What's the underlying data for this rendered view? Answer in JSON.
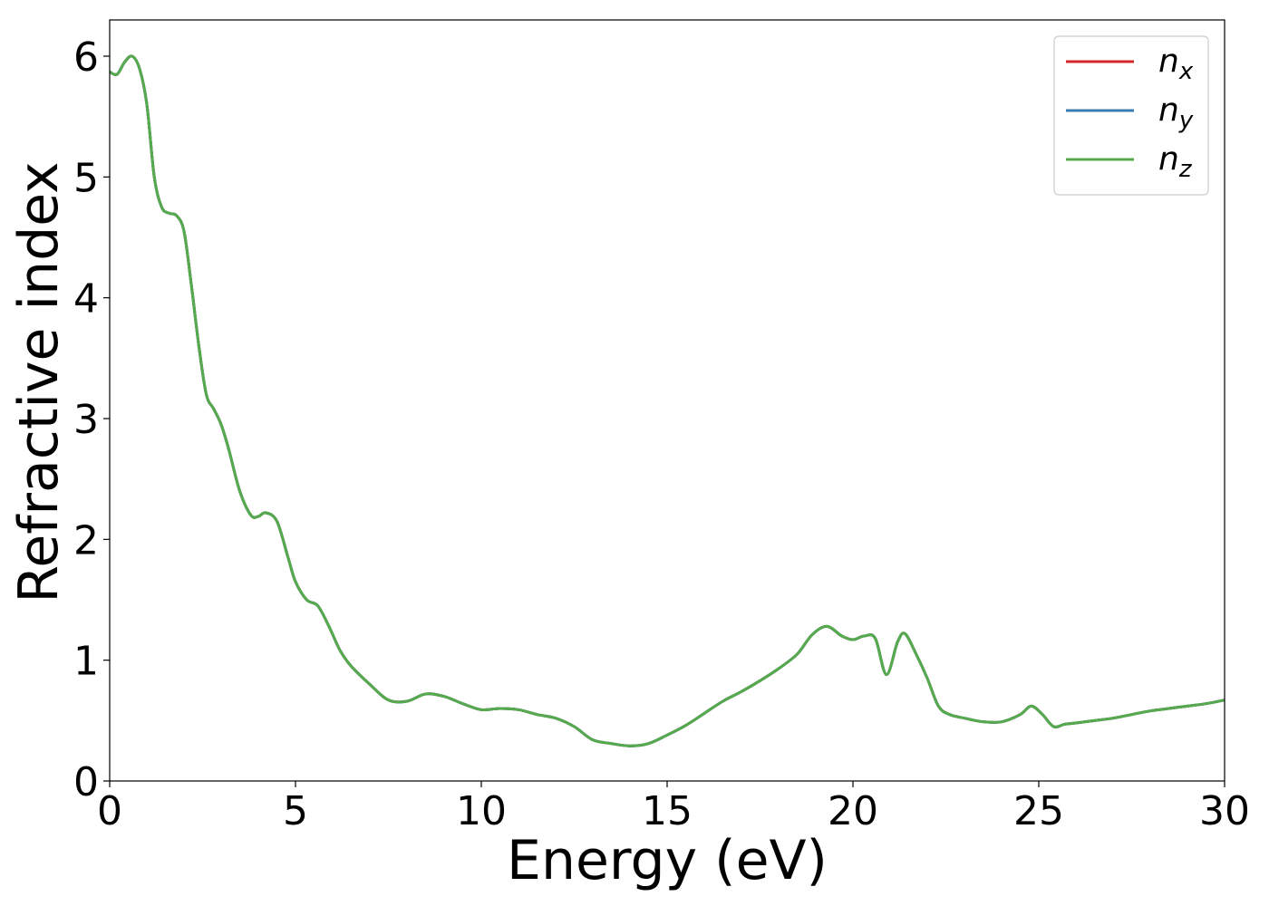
{
  "chart_data": {
    "type": "line",
    "title": "",
    "xlabel": "Energy (eV)",
    "ylabel": "Refractive index",
    "xlim": [
      0,
      30
    ],
    "ylim": [
      0,
      6.3
    ],
    "xticks": [
      0,
      5,
      10,
      15,
      20,
      25,
      30
    ],
    "xtick_labels": [
      "0",
      "5",
      "10",
      "15",
      "20",
      "25",
      "30"
    ],
    "yticks": [
      0,
      1,
      2,
      3,
      4,
      5,
      6
    ],
    "ytick_labels": [
      "0",
      "1",
      "2",
      "3",
      "4",
      "5",
      "6"
    ],
    "grid": false,
    "legend_position": "top-right",
    "x": [
      0,
      0.2,
      0.4,
      0.6,
      0.8,
      1.0,
      1.2,
      1.4,
      1.6,
      1.8,
      2.0,
      2.2,
      2.4,
      2.6,
      2.8,
      3.0,
      3.2,
      3.5,
      3.8,
      4.0,
      4.2,
      4.5,
      4.8,
      5.0,
      5.3,
      5.6,
      5.9,
      6.2,
      6.5,
      7.0,
      7.5,
      8.0,
      8.5,
      9.0,
      9.5,
      10.0,
      10.5,
      11.0,
      11.5,
      12.0,
      12.5,
      13.0,
      13.5,
      14.0,
      14.5,
      15.0,
      15.5,
      16.0,
      16.5,
      17.0,
      17.5,
      18.0,
      18.5,
      18.9,
      19.3,
      19.7,
      20.0,
      20.3,
      20.6,
      20.9,
      21.2,
      21.4,
      21.7,
      22.0,
      22.3,
      22.6,
      23.0,
      23.5,
      24.0,
      24.5,
      24.8,
      25.1,
      25.4,
      25.7,
      26.0,
      26.5,
      27.0,
      27.5,
      28.0,
      28.5,
      29.0,
      29.5,
      30.0
    ],
    "series": [
      {
        "name": "n_x",
        "label_base": "n",
        "label_sub": "x",
        "color": "#d62728",
        "y": [
          5.87,
          5.85,
          5.95,
          6.0,
          5.9,
          5.6,
          5.0,
          4.75,
          4.7,
          4.68,
          4.55,
          4.1,
          3.6,
          3.2,
          3.08,
          2.95,
          2.75,
          2.4,
          2.2,
          2.19,
          2.22,
          2.15,
          1.85,
          1.65,
          1.5,
          1.45,
          1.28,
          1.08,
          0.95,
          0.8,
          0.67,
          0.66,
          0.72,
          0.7,
          0.64,
          0.59,
          0.6,
          0.59,
          0.55,
          0.52,
          0.45,
          0.34,
          0.31,
          0.29,
          0.31,
          0.38,
          0.46,
          0.56,
          0.66,
          0.74,
          0.83,
          0.93,
          1.05,
          1.21,
          1.28,
          1.2,
          1.17,
          1.2,
          1.18,
          0.88,
          1.15,
          1.22,
          1.05,
          0.85,
          0.62,
          0.55,
          0.52,
          0.49,
          0.49,
          0.55,
          0.62,
          0.55,
          0.45,
          0.47,
          0.48,
          0.5,
          0.52,
          0.55,
          0.58,
          0.6,
          0.62,
          0.64,
          0.67
        ]
      },
      {
        "name": "n_y",
        "label_base": "n",
        "label_sub": "y",
        "color": "#3a7bb0",
        "y": [
          5.87,
          5.85,
          5.95,
          6.0,
          5.9,
          5.6,
          5.0,
          4.75,
          4.7,
          4.68,
          4.55,
          4.1,
          3.6,
          3.2,
          3.08,
          2.95,
          2.75,
          2.4,
          2.2,
          2.19,
          2.22,
          2.15,
          1.85,
          1.65,
          1.5,
          1.45,
          1.28,
          1.08,
          0.95,
          0.8,
          0.67,
          0.66,
          0.72,
          0.7,
          0.64,
          0.59,
          0.6,
          0.59,
          0.55,
          0.52,
          0.45,
          0.34,
          0.31,
          0.29,
          0.31,
          0.38,
          0.46,
          0.56,
          0.66,
          0.74,
          0.83,
          0.93,
          1.05,
          1.21,
          1.28,
          1.2,
          1.17,
          1.2,
          1.18,
          0.88,
          1.15,
          1.22,
          1.05,
          0.85,
          0.62,
          0.55,
          0.52,
          0.49,
          0.49,
          0.55,
          0.62,
          0.55,
          0.45,
          0.47,
          0.48,
          0.5,
          0.52,
          0.55,
          0.58,
          0.6,
          0.62,
          0.64,
          0.67
        ]
      },
      {
        "name": "n_z",
        "label_base": "n",
        "label_sub": "z",
        "color": "#55aa4e",
        "y": [
          5.87,
          5.85,
          5.95,
          6.0,
          5.9,
          5.6,
          5.0,
          4.75,
          4.7,
          4.68,
          4.55,
          4.1,
          3.6,
          3.2,
          3.08,
          2.95,
          2.75,
          2.4,
          2.2,
          2.19,
          2.22,
          2.15,
          1.85,
          1.65,
          1.5,
          1.45,
          1.28,
          1.08,
          0.95,
          0.8,
          0.67,
          0.66,
          0.72,
          0.7,
          0.64,
          0.59,
          0.6,
          0.59,
          0.55,
          0.52,
          0.45,
          0.34,
          0.31,
          0.29,
          0.31,
          0.38,
          0.46,
          0.56,
          0.66,
          0.74,
          0.83,
          0.93,
          1.05,
          1.21,
          1.28,
          1.2,
          1.17,
          1.2,
          1.18,
          0.88,
          1.15,
          1.22,
          1.05,
          0.85,
          0.62,
          0.55,
          0.52,
          0.49,
          0.49,
          0.55,
          0.62,
          0.55,
          0.45,
          0.47,
          0.48,
          0.5,
          0.52,
          0.55,
          0.58,
          0.6,
          0.62,
          0.64,
          0.67
        ]
      }
    ]
  }
}
